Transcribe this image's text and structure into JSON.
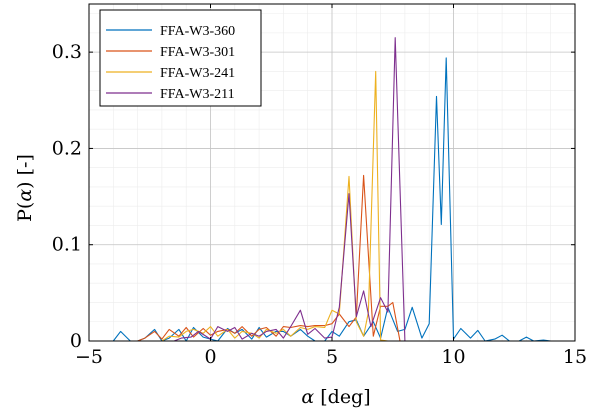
{
  "chart_data": {
    "type": "line",
    "xlabel_symbol": "α",
    "xlabel_unit": " [deg]",
    "ylabel_prefix": "P(",
    "ylabel_symbol": "α",
    "ylabel_suffix": ") [-]",
    "xlim": [
      -5,
      15
    ],
    "ylim": [
      0,
      0.35
    ],
    "xticks": [
      -5,
      0,
      5,
      10,
      15
    ],
    "xtick_labels": [
      "−5",
      "0",
      "5",
      "10",
      "15"
    ],
    "yticks": [
      0,
      0.1,
      0.2,
      0.3
    ],
    "ytick_labels": [
      "0",
      "0.1",
      "0.2",
      "0.3"
    ],
    "grid": true,
    "legend_position": "top-left",
    "series": [
      {
        "name": "FFA-W3-360",
        "color": "#0072BD",
        "x": [
          -4,
          -3.7,
          -3.3,
          -3,
          -2.7,
          -2.3,
          -2,
          -1.7,
          -1.3,
          -1,
          -0.7,
          -0.3,
          0,
          0.3,
          0.7,
          1,
          1.3,
          1.7,
          2,
          2.3,
          2.7,
          3,
          3.3,
          3.7,
          4,
          4.3,
          4.7,
          5,
          5.3,
          5.7,
          6,
          6.3,
          6.7,
          7,
          7.3,
          7.7,
          8,
          8.3,
          8.7,
          9,
          9.3,
          9.5,
          9.7,
          10,
          10.3,
          10.7,
          11,
          11.3,
          11.7,
          12,
          12.3,
          12.7,
          13,
          13.3,
          13.7,
          14
        ],
        "y": [
          0,
          0.01,
          0,
          0,
          0.003,
          0.012,
          0,
          0.003,
          0.012,
          0,
          0.014,
          0.004,
          0.002,
          0,
          0.013,
          0.008,
          0.012,
          0.002,
          0.014,
          0.004,
          0.01,
          0.01,
          0.005,
          0.012,
          0.005,
          0,
          0,
          0.01,
          0.005,
          0.02,
          0.022,
          0.005,
          0.02,
          0.003,
          0.035,
          0.01,
          0.012,
          0.035,
          0.003,
          0.018,
          0.254,
          0.121,
          0.294,
          0.002,
          0.013,
          0.003,
          0.011,
          0,
          0.002,
          0.006,
          0,
          0,
          0.004,
          0,
          0.001,
          0
        ]
      },
      {
        "name": "FFA-W3-301",
        "color": "#D95319",
        "x": [
          -3,
          -2.7,
          -2.3,
          -2,
          -1.7,
          -1.3,
          -1,
          -0.7,
          -0.3,
          0,
          0.3,
          0.7,
          1,
          1.3,
          1.7,
          2,
          2.3,
          2.7,
          3,
          3.3,
          3.7,
          4,
          4.3,
          4.7,
          5,
          5.3,
          5.7,
          6,
          6.3,
          6.7,
          7,
          7.3,
          7.5,
          7.8
        ],
        "y": [
          0,
          0.003,
          0.01,
          0.002,
          0.012,
          0.005,
          0.014,
          0.004,
          0.013,
          0.006,
          0.01,
          0.012,
          0.008,
          0.015,
          0.005,
          0.012,
          0.014,
          0.005,
          0.015,
          0.014,
          0.016,
          0.015,
          0.016,
          0.016,
          0.018,
          0.028,
          0.015,
          0.025,
          0.172,
          0.005,
          0.036,
          0.036,
          0.04,
          0
        ]
      },
      {
        "name": "FFA-W3-241",
        "color": "#EDB120",
        "x": [
          -2,
          -1.7,
          -1.3,
          -1,
          -0.7,
          -0.3,
          0,
          0.3,
          0.7,
          1,
          1.3,
          1.7,
          2,
          2.3,
          2.7,
          3,
          3.3,
          3.7,
          4,
          4.3,
          4.7,
          5,
          5.3,
          5.7,
          6,
          6.3,
          6.5,
          6.8,
          7,
          7.3
        ],
        "y": [
          0,
          0.005,
          0.004,
          0.01,
          0.012,
          0.008,
          0.015,
          0.005,
          0.012,
          0.003,
          0.01,
          0.008,
          0.003,
          0.012,
          0.008,
          0.012,
          0.005,
          0.014,
          0.012,
          0.015,
          0.014,
          0.032,
          0.028,
          0.171,
          0.02,
          0.005,
          0.03,
          0.28,
          0.001,
          0
        ]
      },
      {
        "name": "FFA-W3-211",
        "color": "#7E2F8E",
        "x": [
          -1.5,
          -1.2,
          -0.8,
          -0.5,
          0,
          0.3,
          0.7,
          1,
          1.3,
          1.7,
          2,
          2.3,
          2.7,
          3,
          3.3,
          3.7,
          4,
          4.3,
          4.7,
          5,
          5.3,
          5.7,
          6,
          6.3,
          6.6,
          7,
          7.3,
          7.6,
          8
        ],
        "y": [
          0,
          0.003,
          0.004,
          0.01,
          0.002,
          0.015,
          0.01,
          0.014,
          0.002,
          0.008,
          0.005,
          0.01,
          0.012,
          0.003,
          0.015,
          0.032,
          0.007,
          0.013,
          0.003,
          0.004,
          0.035,
          0.153,
          0.025,
          0.052,
          0.015,
          0.045,
          0.03,
          0.315,
          0
        ]
      }
    ]
  }
}
